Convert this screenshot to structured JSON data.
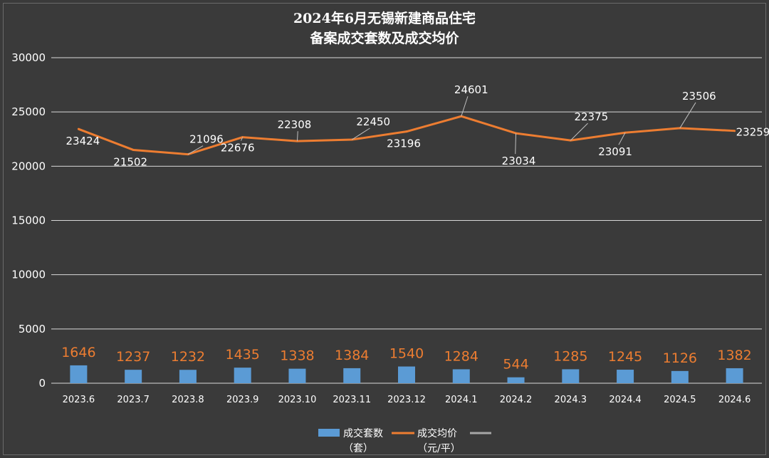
{
  "chart_data": {
    "type": "bar+line",
    "title_line1": "2024年6月无锡新建商品住宅",
    "title_line2": "备案成交套数及成交均价",
    "categories": [
      "2023.6",
      "2023.7",
      "2023.8",
      "2023.9",
      "2023.10",
      "2023.11",
      "2023.12",
      "2024.1",
      "2024.2",
      "2024.3",
      "2024.4",
      "2024.5",
      "2024.6"
    ],
    "series": [
      {
        "name": "成交套数",
        "name_line2": "（套）",
        "type": "bar",
        "color": "#5b9bd5",
        "values": [
          1646,
          1237,
          1232,
          1435,
          1338,
          1384,
          1540,
          1284,
          544,
          1285,
          1245,
          1126,
          1382
        ]
      },
      {
        "name": "成交均价",
        "name_line2": "（元/平）",
        "type": "line",
        "color": "#ed7d31",
        "values": [
          23424,
          21502,
          21096,
          22676,
          22308,
          22450,
          23196,
          24601,
          23034,
          22375,
          23091,
          23506,
          23259
        ]
      }
    ],
    "ylim": [
      0,
      30000
    ],
    "yticks": [
      "0",
      "5000",
      "10000",
      "15000",
      "20000",
      "25000",
      "30000"
    ],
    "grid": true,
    "legend_position": "bottom",
    "third_legend_color": "#a6a6a6"
  }
}
